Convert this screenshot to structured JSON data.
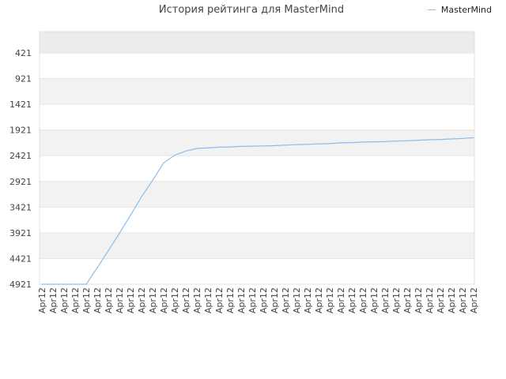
{
  "chart_data": {
    "type": "line",
    "title": "История рейтинга для MasterMind",
    "xlabel": "",
    "ylabel": "",
    "y_axis": {
      "inverted": true,
      "range": [
        421,
        4921
      ],
      "ticks": [
        421,
        921,
        1421,
        1921,
        2421,
        2921,
        3421,
        3921,
        4421,
        4921
      ]
    },
    "x_axis": {
      "tick_labels": [
        "Apr12",
        "Apr12",
        "Apr12",
        "Apr12",
        "Apr12",
        "Apr12",
        "Apr12",
        "Apr12",
        "Apr12",
        "Apr12",
        "Apr12",
        "Apr12",
        "Apr12",
        "Apr12",
        "Apr12",
        "Apr12",
        "Apr12",
        "Apr12",
        "Apr12",
        "Apr12",
        "Apr12",
        "Apr12",
        "Apr12",
        "Apr12",
        "Apr12",
        "Apr12",
        "Apr12",
        "Apr12",
        "Apr12",
        "Apr12",
        "Apr12",
        "Apr12",
        "Apr12",
        "Apr12",
        "Apr12",
        "Apr12",
        "Apr12",
        "Apr12",
        "Apr12",
        "Apr12"
      ]
    },
    "legend": {
      "position": "top-right"
    },
    "series": [
      {
        "name": "MasterMind",
        "color": "#8cbde8",
        "values": [
          4921,
          4921,
          4921,
          4921,
          4921,
          4600,
          4270,
          3930,
          3580,
          3220,
          2900,
          2560,
          2410,
          2330,
          2280,
          2270,
          2255,
          2250,
          2240,
          2235,
          2230,
          2225,
          2215,
          2205,
          2200,
          2190,
          2185,
          2170,
          2165,
          2155,
          2150,
          2145,
          2135,
          2130,
          2120,
          2110,
          2105,
          2095,
          2085,
          2071
        ]
      }
    ]
  },
  "colors": {
    "line": "#8cbde8",
    "band_odd": "#f2f2f2",
    "band_top": "#ececec",
    "grid": "#e6e6e6",
    "axis_text": "#444444"
  }
}
